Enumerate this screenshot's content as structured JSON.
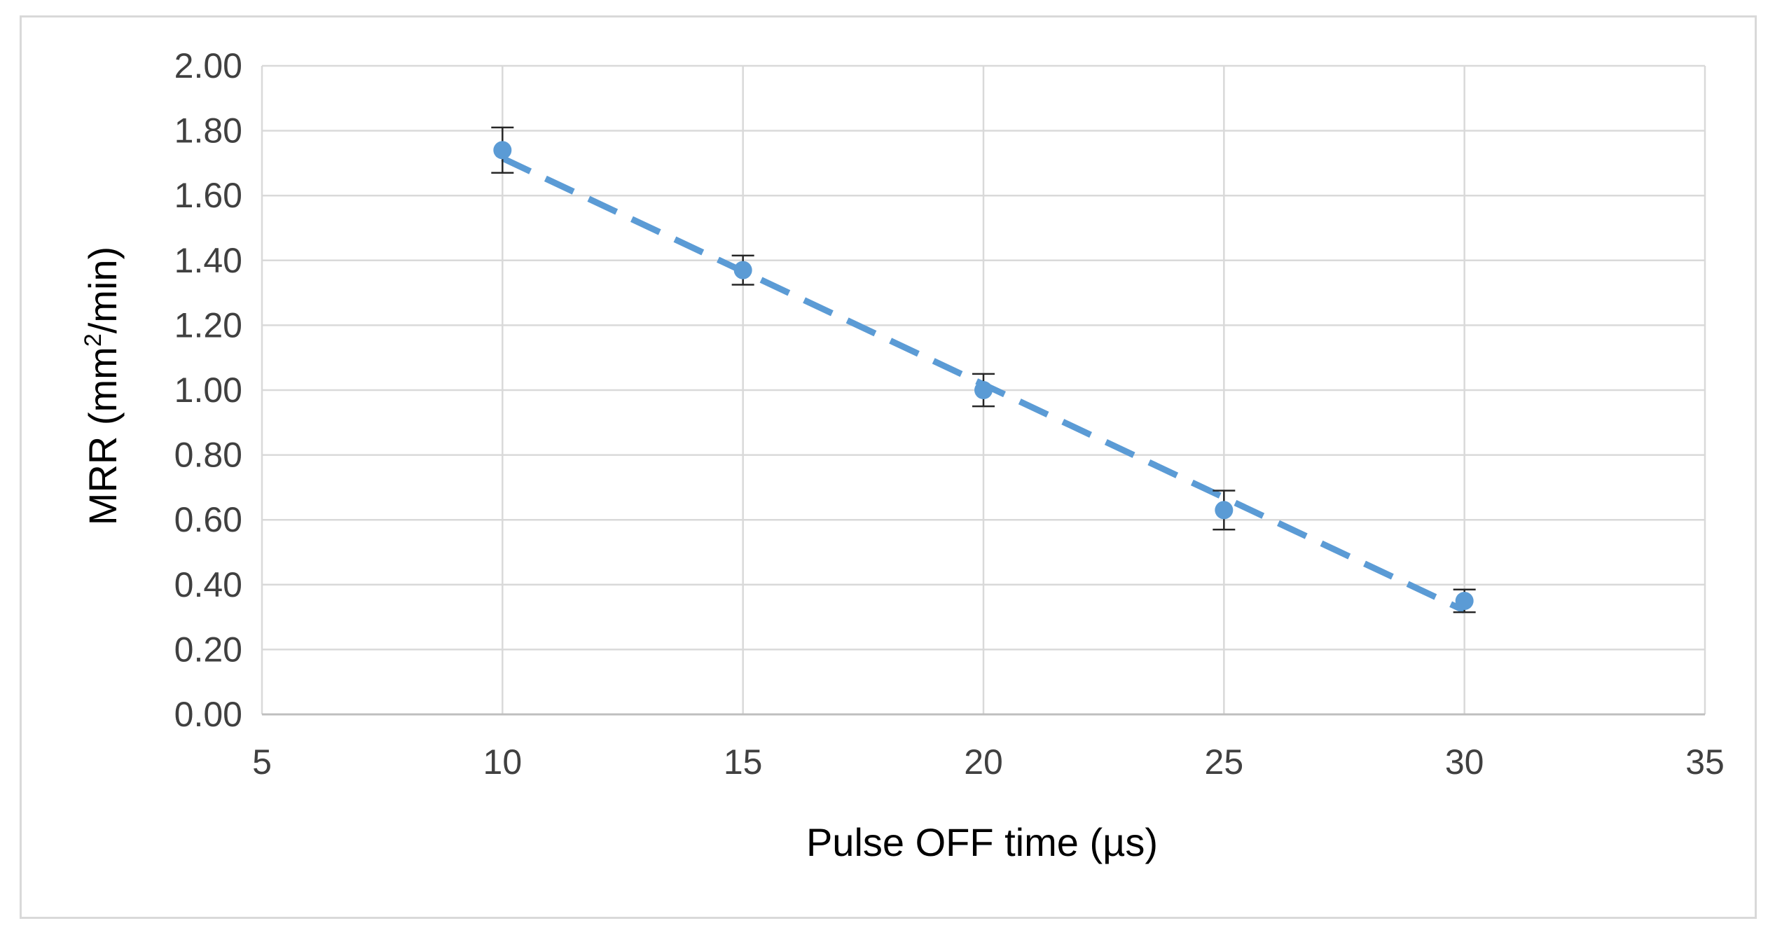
{
  "chart_data": {
    "type": "scatter",
    "xlabel": "Pulse OFF time (µs)",
    "ylabel_prefix": "MRR (mm",
    "ylabel_sup": "2",
    "ylabel_suffix": "/min)",
    "xlim": [
      5,
      35
    ],
    "ylim": [
      0,
      2
    ],
    "xticks": [
      5,
      10,
      15,
      20,
      25,
      30,
      35
    ],
    "yticks": [
      0,
      0.2,
      0.4,
      0.6,
      0.8,
      1.0,
      1.2,
      1.4,
      1.6,
      1.8,
      2.0
    ],
    "xtick_labels": [
      "5",
      "10",
      "15",
      "20",
      "25",
      "30",
      "35"
    ],
    "ytick_labels": [
      "0.00",
      "0.20",
      "0.40",
      "0.60",
      "0.80",
      "1.00",
      "1.20",
      "1.40",
      "1.60",
      "1.80",
      "2.00"
    ],
    "grid": true,
    "series": [
      {
        "x": [
          10,
          15,
          20,
          25,
          30
        ],
        "y": [
          1.74,
          1.37,
          1.0,
          0.63,
          0.35
        ],
        "error": [
          0.07,
          0.045,
          0.05,
          0.06,
          0.035
        ],
        "color": "#5b9bd5",
        "trendline": {
          "type": "linear",
          "style": "dashed",
          "x": [
            10,
            30
          ],
          "y": [
            1.715,
            0.32
          ]
        }
      }
    ]
  }
}
